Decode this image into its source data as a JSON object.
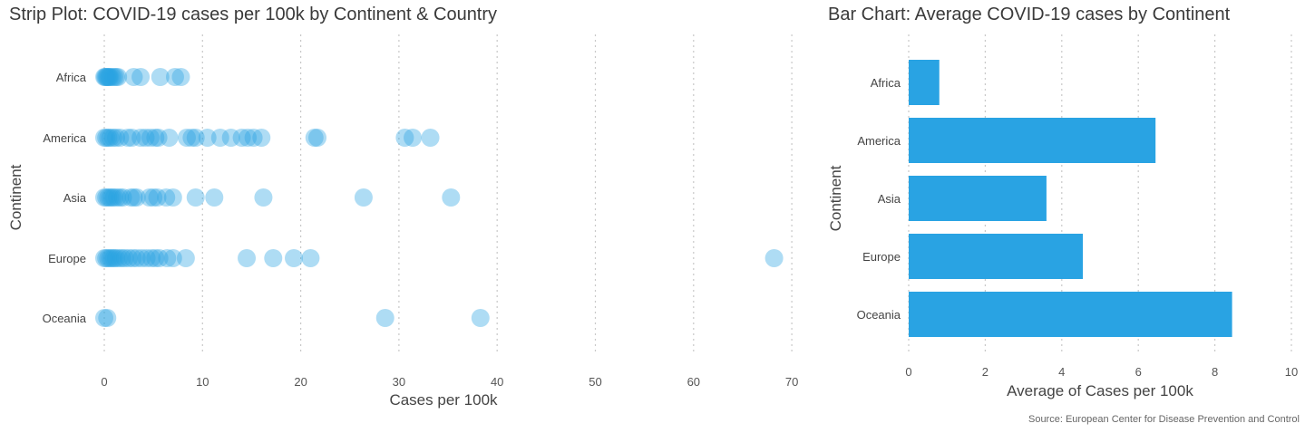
{
  "colors": {
    "accent": "#29a3e3",
    "dot_fill": "#29a3e3",
    "grid": "#c8c8c8"
  },
  "source": "Source: European Center for Disease Prevention and Control",
  "chart_data": [
    {
      "type": "scatter",
      "title": "Strip Plot: COVID-19 cases per 100k by Continent & Country",
      "xlabel": "Cases per 100k",
      "ylabel": "Continent",
      "categories": [
        "Africa",
        "America",
        "Asia",
        "Europe",
        "Oceania"
      ],
      "xlim": [
        -1,
        71
      ],
      "xticks": [
        0,
        10,
        20,
        30,
        40,
        50,
        60,
        70
      ],
      "grid": true,
      "series": [
        {
          "category": "Africa",
          "x": [
            0,
            0.1,
            0.2,
            0.3,
            0.4,
            0.5,
            0.6,
            0.8,
            1.0,
            1.2,
            1.4,
            3.0,
            3.7,
            5.7,
            7.2,
            7.8
          ]
        },
        {
          "category": "America",
          "x": [
            0,
            0.2,
            0.4,
            0.6,
            0.9,
            1.2,
            1.6,
            2.4,
            2.8,
            3.7,
            4.2,
            4.7,
            5.2,
            5.5,
            6.6,
            8.4,
            8.9,
            9.3,
            10.5,
            11.8,
            12.9,
            14.0,
            14.6,
            15.2,
            16.0,
            21.4,
            21.7,
            30.6,
            31.4,
            33.2
          ]
        },
        {
          "category": "Asia",
          "x": [
            0,
            0.2,
            0.4,
            0.6,
            0.8,
            1.0,
            1.3,
            1.6,
            1.9,
            2.7,
            3.0,
            3.3,
            4.6,
            5.0,
            5.4,
            6.3,
            7.0,
            9.3,
            11.2,
            16.2,
            26.4,
            35.3
          ]
        },
        {
          "category": "Europe",
          "x": [
            0,
            0.2,
            0.4,
            0.6,
            0.8,
            1.0,
            1.2,
            1.5,
            1.8,
            2.1,
            2.5,
            2.9,
            3.3,
            3.8,
            4.3,
            4.8,
            5.2,
            5.6,
            6.4,
            7.0,
            8.3,
            14.5,
            17.2,
            19.3,
            21.0,
            68.2
          ]
        },
        {
          "category": "Oceania",
          "x": [
            0,
            0.3,
            28.6,
            38.3
          ]
        }
      ]
    },
    {
      "type": "bar",
      "orientation": "horizontal",
      "title": "Bar Chart: Average COVID-19 cases by Continent",
      "xlabel": "Average of Cases per 100k",
      "ylabel": "Continent",
      "categories": [
        "Africa",
        "America",
        "Asia",
        "Europe",
        "Oceania"
      ],
      "values": [
        0.8,
        6.45,
        3.6,
        4.55,
        8.45
      ],
      "xlim": [
        0,
        10
      ],
      "xticks": [
        0,
        2,
        4,
        6,
        8,
        10
      ],
      "grid": true
    }
  ]
}
